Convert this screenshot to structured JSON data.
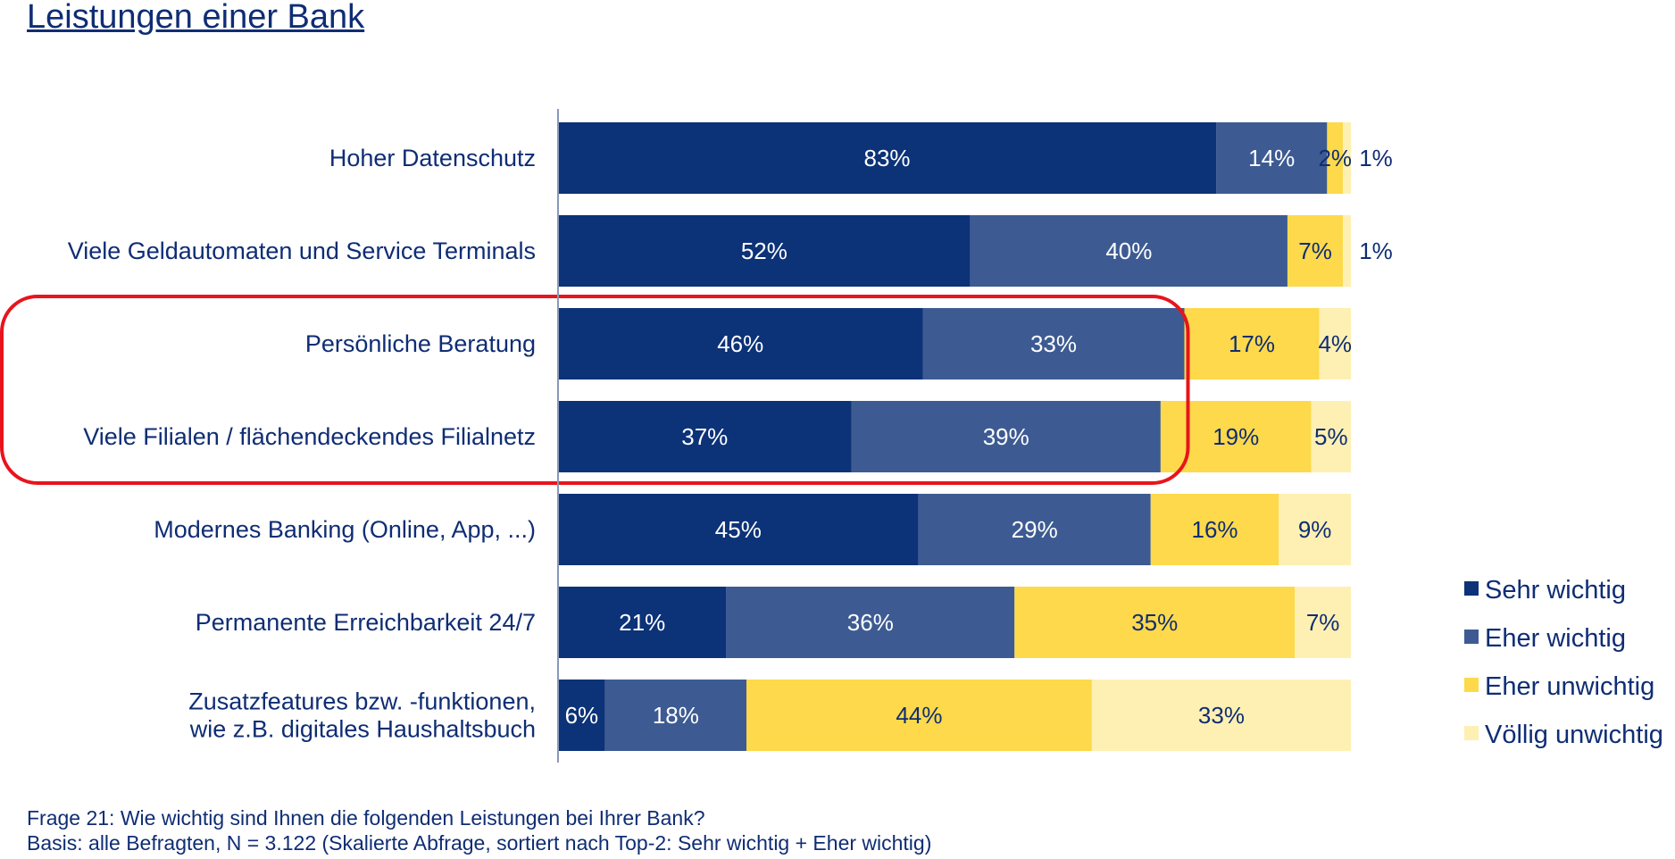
{
  "title": "Leistungen einer Bank",
  "footnote": {
    "line1": "Frage 21: Wie wichtig sind Ihnen die folgenden Leistungen bei Ihrer Bank?",
    "line2": "Basis: alle Befragten, N = 3.122 (Skalierte Abfrage, sortiert nach Top-2: Sehr wichtig + Eher wichtig)"
  },
  "chart_data": {
    "type": "bar",
    "orientation": "horizontal",
    "stacked": true,
    "unit": "%",
    "xlim": [
      0,
      100
    ],
    "grid": false,
    "legend_position": "right",
    "categories": [
      [
        "Hoher Datenschutz"
      ],
      [
        "Viele Geldautomaten und Service Terminals"
      ],
      [
        "Persönliche Beratung"
      ],
      [
        "Viele Filialen / flächendeckendes Filialnetz"
      ],
      [
        "Modernes Banking (Online, App, ...)"
      ],
      [
        "Permanente Erreichbarkeit 24/7"
      ],
      [
        "Zusatzfeatures bzw. -funktionen,",
        "wie z.B. digitales Haushaltsbuch"
      ]
    ],
    "series": [
      {
        "name": "Sehr wichtig",
        "color": "#0c3278",
        "label_color": "#ffffff",
        "values": [
          83,
          52,
          46,
          37,
          45,
          21,
          6
        ]
      },
      {
        "name": "Eher wichtig",
        "color": "#3d5b92",
        "label_color": "#ffffff",
        "values": [
          14,
          40,
          33,
          39,
          29,
          36,
          18
        ]
      },
      {
        "name": "Eher unwichtig",
        "color": "#fdd94b",
        "label_color": "#0f2d74",
        "values": [
          2,
          7,
          17,
          19,
          16,
          35,
          44
        ]
      },
      {
        "name": "Völlig unwichtig",
        "color": "#fef0b3",
        "label_color": "#0f2d74",
        "values": [
          1,
          1,
          4,
          5,
          9,
          7,
          33
        ]
      }
    ],
    "annotations": [
      {
        "type": "highlight-box",
        "color": "#e8141c",
        "categories": [
          "Persönliche Beratung",
          "Viele Filialen / flächendeckendes Filialnetz"
        ],
        "series": [
          "Sehr wichtig",
          "Eher wichtig"
        ]
      }
    ]
  }
}
